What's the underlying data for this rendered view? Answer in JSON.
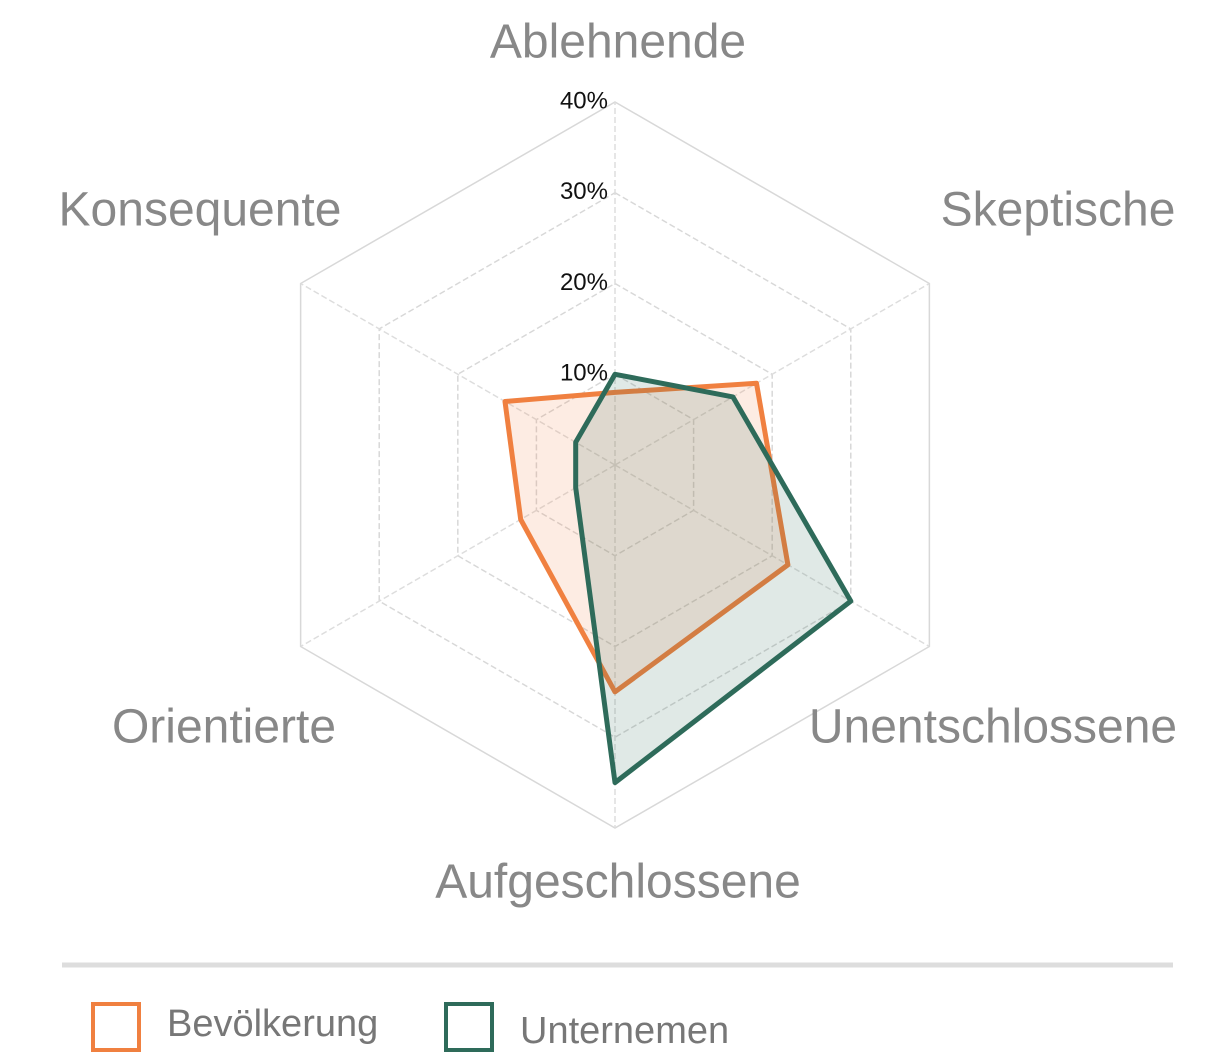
{
  "chart_data": {
    "type": "radar",
    "categories": [
      "Ablehnende",
      "Skeptische",
      "Unentschlossene",
      "Aufgeschlossene",
      "Orientierte",
      "Konsequente"
    ],
    "series": [
      {
        "name": "Bevölkerung",
        "color": "#f08040",
        "values": [
          8,
          18,
          22,
          25,
          12,
          14
        ]
      },
      {
        "name": "Unternemen",
        "color": "#2e6b5a",
        "values": [
          10,
          15,
          30,
          35,
          5,
          5
        ]
      }
    ],
    "rlim": [
      0,
      40
    ],
    "rticks": [
      {
        "value": 10,
        "label": "10%"
      },
      {
        "value": 20,
        "label": "20%"
      },
      {
        "value": 30,
        "label": "30%"
      },
      {
        "value": 40,
        "label": "40%"
      }
    ],
    "grid": true,
    "legend": "bottom"
  }
}
